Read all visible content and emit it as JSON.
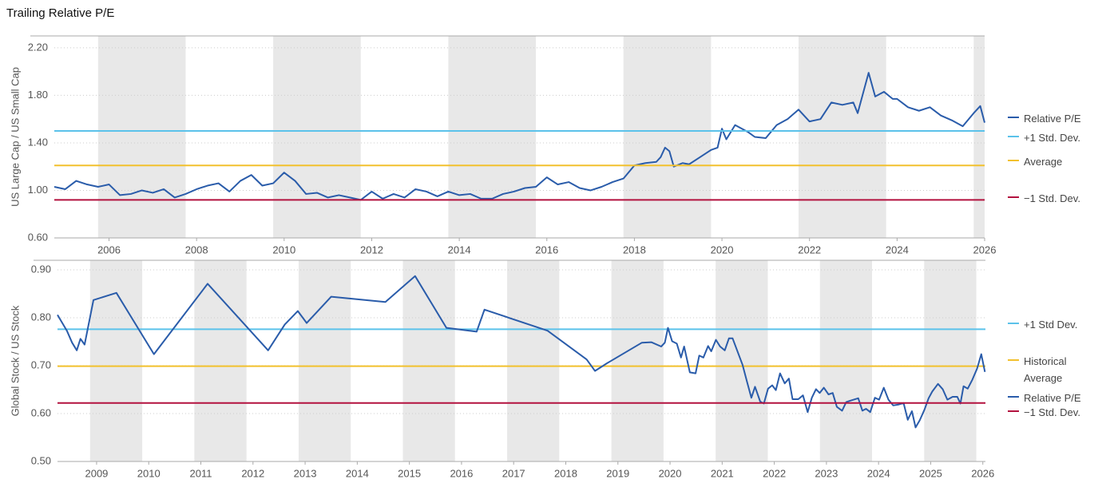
{
  "title": "Trailing Relative P/E",
  "chart_data": [
    {
      "type": "line",
      "ylabel": "US Large Cap / US Small Cap",
      "xlim": [
        2004.75,
        2026
      ],
      "xticks": [
        2006,
        2008,
        2010,
        2012,
        2014,
        2016,
        2018,
        2020,
        2022,
        2024,
        2026
      ],
      "ylim": [
        0.6,
        2.3
      ],
      "yticks": [
        {
          "value": 0.6,
          "label": "0.60"
        },
        {
          "value": 1.0,
          "label": "1.00"
        },
        {
          "value": 1.4,
          "label": "1.40"
        },
        {
          "value": 1.8,
          "label": "1.80"
        },
        {
          "value": 2.2,
          "label": "2.20"
        }
      ],
      "grid": true,
      "shading": true,
      "x": [
        2004.75,
        2005,
        2005.25,
        2005.5,
        2005.75,
        2006,
        2006.25,
        2006.5,
        2006.75,
        2007,
        2007.25,
        2007.5,
        2007.75,
        2008,
        2008.25,
        2008.5,
        2008.75,
        2009,
        2009.25,
        2009.5,
        2009.75,
        2010,
        2010.25,
        2010.5,
        2010.75,
        2011,
        2011.25,
        2011.5,
        2011.75,
        2012,
        2012.25,
        2012.5,
        2012.75,
        2013,
        2013.25,
        2013.5,
        2013.75,
        2014,
        2014.25,
        2014.5,
        2014.75,
        2015,
        2015.25,
        2015.5,
        2015.75,
        2016,
        2016.25,
        2016.5,
        2016.75,
        2017,
        2017.25,
        2017.5,
        2017.75,
        2018,
        2018.25,
        2018.5,
        2018.6,
        2018.7,
        2018.8,
        2018.9,
        2019.1,
        2019.25,
        2019.5,
        2019.75,
        2019.9,
        2020,
        2020.1,
        2020.3,
        2020.6,
        2020.75,
        2021,
        2021.25,
        2021.5,
        2021.75,
        2022,
        2022.25,
        2022.5,
        2022.75,
        2023,
        2023.1,
        2023.35,
        2023.5,
        2023.7,
        2023.9,
        2024,
        2024.25,
        2024.5,
        2024.75,
        2025,
        2025.25,
        2025.5,
        2025.75,
        2025.9,
        2026
      ],
      "series": [
        {
          "name": "Relative P/E",
          "color": "#2a5caa",
          "values": [
            1.03,
            1.01,
            1.08,
            1.05,
            1.03,
            1.05,
            0.96,
            0.97,
            1.0,
            0.98,
            1.01,
            0.94,
            0.97,
            1.01,
            1.04,
            1.06,
            0.99,
            1.08,
            1.13,
            1.04,
            1.06,
            1.15,
            1.08,
            0.97,
            0.98,
            0.94,
            0.96,
            0.94,
            0.92,
            0.99,
            0.93,
            0.97,
            0.94,
            1.01,
            0.99,
            0.95,
            0.99,
            0.96,
            0.97,
            0.93,
            0.93,
            0.97,
            0.99,
            1.02,
            1.03,
            1.11,
            1.05,
            1.07,
            1.02,
            1.0,
            1.03,
            1.07,
            1.1,
            1.21,
            1.23,
            1.24,
            1.28,
            1.36,
            1.33,
            1.2,
            1.23,
            1.22,
            1.28,
            1.34,
            1.36,
            1.52,
            1.43,
            1.55,
            1.49,
            1.45,
            1.44,
            1.55,
            1.6,
            1.68,
            1.58,
            1.6,
            1.74,
            1.72,
            1.74,
            1.65,
            1.99,
            1.79,
            1.83,
            1.77,
            1.77,
            1.7,
            1.67,
            1.7,
            1.63,
            1.59,
            1.54,
            1.65,
            1.71,
            1.57
          ]
        },
        {
          "name": "+1 Std. Dev.",
          "color": "#5bc2ea",
          "value": 1.5
        },
        {
          "name": "Average",
          "color": "#f2c12e",
          "value": 1.21
        },
        {
          "name": "−1 Std. Dev.",
          "color": "#b3123f",
          "value": 0.92
        }
      ]
    },
    {
      "type": "line",
      "ylabel": "Global Stock / US Stock",
      "xlim": [
        2008.25,
        2026.05
      ],
      "xticks": [
        2009,
        2010,
        2011,
        2012,
        2013,
        2014,
        2015,
        2016,
        2017,
        2018,
        2019,
        2020,
        2021,
        2022,
        2023,
        2024,
        2025,
        2026
      ],
      "ylim": [
        0.5,
        0.92
      ],
      "yticks": [
        {
          "value": 0.5,
          "label": "0.50"
        },
        {
          "value": 0.6,
          "label": "0.60"
        },
        {
          "value": 0.7,
          "label": "0.70"
        },
        {
          "value": 0.8,
          "label": "0.80"
        },
        {
          "value": 0.9,
          "label": "0.90"
        }
      ],
      "grid": true,
      "shading": true,
      "x": [
        2008.25,
        2008.43,
        2008.53,
        2008.62,
        2008.69,
        2008.77,
        2008.94,
        2009.38,
        2010.1,
        2011.13,
        2012.29,
        2012.61,
        2012.86,
        2013.03,
        2013.5,
        2014.54,
        2015.11,
        2015.71,
        2016.29,
        2016.44,
        2017.65,
        2018.4,
        2018.56,
        2018.79,
        2019.46,
        2019.64,
        2019.83,
        2019.9,
        2019.96,
        2020.04,
        2020.13,
        2020.21,
        2020.27,
        2020.38,
        2020.49,
        2020.56,
        2020.64,
        2020.73,
        2020.79,
        2020.88,
        2020.96,
        2021.05,
        2021.13,
        2021.2,
        2021.39,
        2021.48,
        2021.56,
        2021.63,
        2021.73,
        2021.8,
        2021.88,
        2021.96,
        2022.03,
        2022.11,
        2022.2,
        2022.28,
        2022.35,
        2022.46,
        2022.55,
        2022.64,
        2022.72,
        2022.8,
        2022.87,
        2022.95,
        2023.04,
        2023.12,
        2023.2,
        2023.3,
        2023.38,
        2023.46,
        2023.61,
        2023.69,
        2023.76,
        2023.84,
        2023.93,
        2024.01,
        2024.1,
        2024.19,
        2024.28,
        2024.39,
        2024.48,
        2024.56,
        2024.64,
        2024.71,
        2024.79,
        2024.88,
        2024.96,
        2025.03,
        2025.14,
        2025.23,
        2025.32,
        2025.42,
        2025.51,
        2025.57,
        2025.63,
        2025.71,
        2025.8,
        2025.89,
        2025.97,
        2026.04
      ],
      "series": [
        {
          "name": "+1 Std Dev.",
          "color": "#5bc2ea",
          "value": 0.776
        },
        {
          "name": "Historical Average",
          "color": "#f2c12e",
          "value": 0.699
        },
        {
          "name": "Relative P/E",
          "color": "#2a5caa",
          "values": [
            0.806,
            0.773,
            0.748,
            0.732,
            0.756,
            0.744,
            0.837,
            0.852,
            0.724,
            0.871,
            0.732,
            0.786,
            0.814,
            0.789,
            0.844,
            0.833,
            0.887,
            0.779,
            0.771,
            0.817,
            0.773,
            0.713,
            0.689,
            0.705,
            0.748,
            0.749,
            0.74,
            0.748,
            0.779,
            0.751,
            0.746,
            0.717,
            0.74,
            0.686,
            0.684,
            0.721,
            0.717,
            0.741,
            0.73,
            0.754,
            0.74,
            0.732,
            0.757,
            0.757,
            0.702,
            0.665,
            0.633,
            0.656,
            0.625,
            0.621,
            0.652,
            0.659,
            0.649,
            0.684,
            0.663,
            0.673,
            0.63,
            0.63,
            0.638,
            0.603,
            0.633,
            0.651,
            0.643,
            0.654,
            0.64,
            0.643,
            0.614,
            0.606,
            0.624,
            0.627,
            0.632,
            0.606,
            0.61,
            0.603,
            0.633,
            0.629,
            0.654,
            0.629,
            0.617,
            0.619,
            0.622,
            0.587,
            0.605,
            0.571,
            0.586,
            0.608,
            0.632,
            0.646,
            0.662,
            0.651,
            0.629,
            0.635,
            0.635,
            0.621,
            0.657,
            0.652,
            0.671,
            0.694,
            0.724,
            0.687
          ]
        },
        {
          "name": "−1 Std. Dev.",
          "color": "#b3123f",
          "value": 0.622
        }
      ]
    }
  ]
}
